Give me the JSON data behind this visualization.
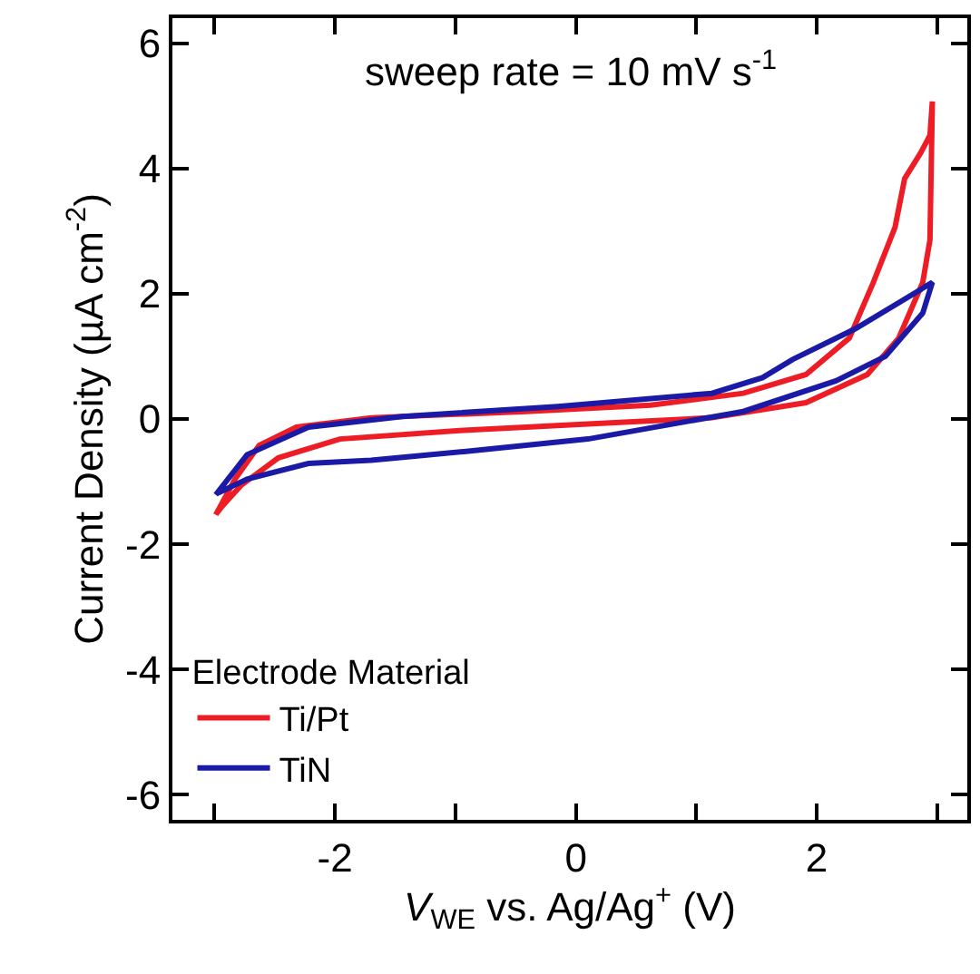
{
  "chart_data": {
    "type": "line",
    "xlabel": "V$_{WE}$ vs. Ag/Ag$^{+}$ (V)",
    "ylabel": "Current Density (µA cm$^{-2}$)",
    "legend_title": "Electrode Material",
    "annotations": [
      "sweep rate = 10 mV s$^{-1}$"
    ],
    "xlim": [
      -3.35,
      3.25
    ],
    "xticks": [
      {
        "value": -3,
        "label": null
      },
      -2,
      {
        "value": -1,
        "label": null
      },
      0,
      {
        "value": 1,
        "label": null
      },
      2,
      {
        "value": 3,
        "label": null
      }
    ],
    "ylim": [
      -6.4,
      6.4
    ],
    "yticks": [
      -6,
      -4,
      -2,
      0,
      2,
      4,
      6
    ],
    "legend": "bottom left",
    "marker": "none",
    "line_style": "solid",
    "series": [
      {
        "name": "Ti/Pt",
        "color": "#ee1c25",
        "x": [
          -2.99,
          -2.83,
          -2.63,
          -2.32,
          -1.7,
          -0.41,
          0.62,
          1.39,
          1.91,
          2.27,
          2.47,
          2.65,
          2.73,
          2.86,
          2.94,
          2.96,
          2.94,
          2.88,
          2.68,
          2.42,
          1.91,
          1.13,
          0.1,
          -0.93,
          -1.96,
          -2.47,
          -2.78,
          -2.94,
          -2.98
        ],
        "values": [
          -1.53,
          -0.96,
          -0.42,
          -0.13,
          0.02,
          0.12,
          0.22,
          0.41,
          0.71,
          1.29,
          2.18,
          3.06,
          3.84,
          4.24,
          4.53,
          5.07,
          2.86,
          2.18,
          1.29,
          0.71,
          0.26,
          0.02,
          -0.08,
          -0.18,
          -0.32,
          -0.62,
          -1.06,
          -1.4,
          -1.5
        ]
      },
      {
        "name": "TiN",
        "color": "#1a1aa6",
        "x": [
          -2.99,
          -2.73,
          -2.22,
          -1.44,
          -0.15,
          1.13,
          1.55,
          1.8,
          2.32,
          2.96,
          2.88,
          2.57,
          2.16,
          1.39,
          0.1,
          -0.93,
          -1.7,
          -2.22,
          -2.73,
          -2.97
        ],
        "values": [
          -1.21,
          -0.57,
          -0.13,
          0.04,
          0.2,
          0.41,
          0.66,
          0.95,
          1.44,
          2.18,
          1.69,
          1.0,
          0.61,
          0.12,
          -0.32,
          -0.52,
          -0.66,
          -0.71,
          -0.96,
          -1.18
        ]
      }
    ]
  }
}
